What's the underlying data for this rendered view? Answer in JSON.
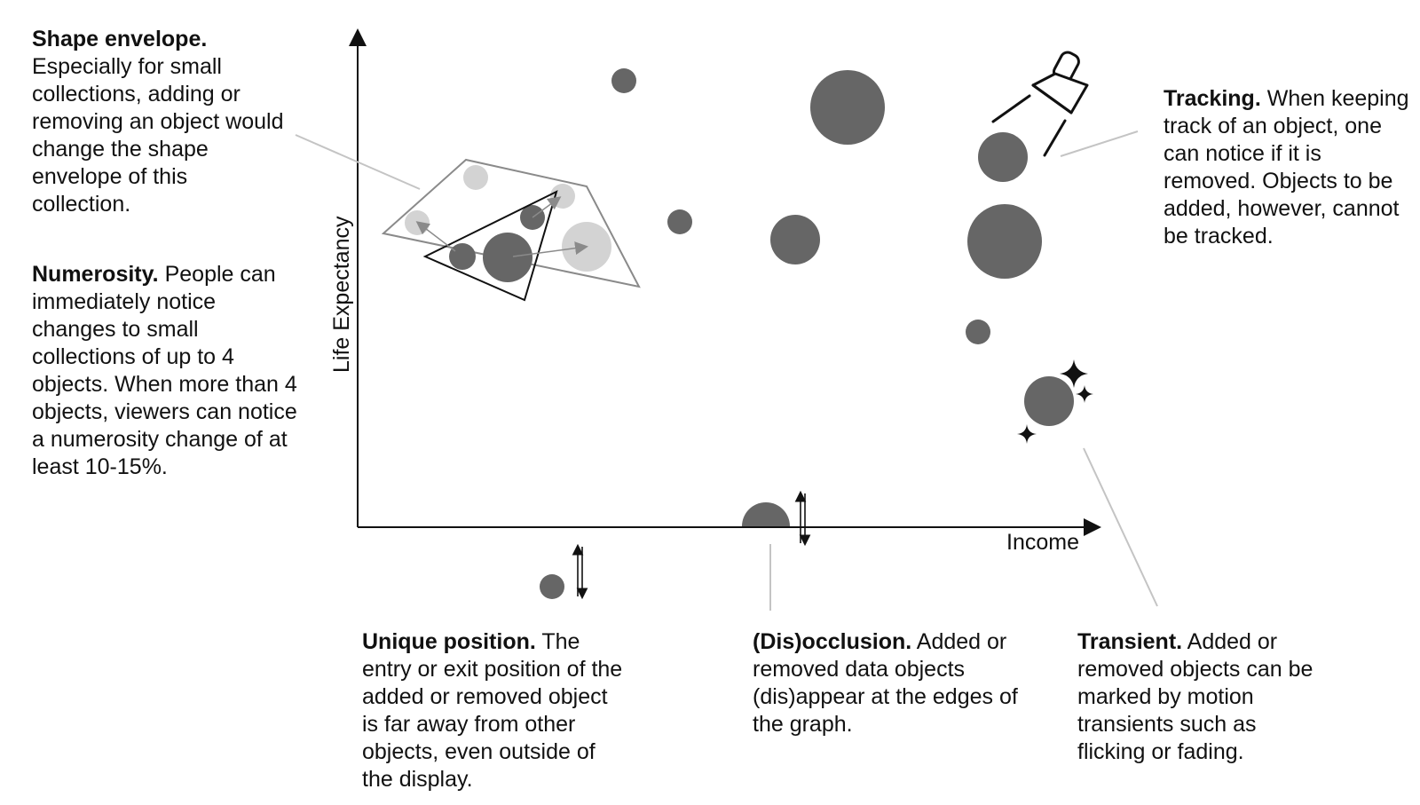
{
  "axes": {
    "x_label": "Income",
    "y_label": "Life Expectancy"
  },
  "annotations": {
    "shape_envelope": {
      "title": "Shape envelope.",
      "body": "Especially for small collections, adding or removing an object would change the shape envelope of this collection."
    },
    "numerosity": {
      "title": "Numerosity.",
      "body": "People can immediately notice changes to small collections of up to 4 objects. When more than 4 objects, viewers can notice a numerosity change of at least 10-15%."
    },
    "tracking": {
      "title": "Tracking.",
      "body": "When keeping track of an object, one can notice if it is removed. Objects to be added, however, cannot be tracked."
    },
    "unique_position": {
      "title": "Unique position.",
      "body": "The entry or exit position of the added or removed object is far away from other objects, even outside of the display."
    },
    "disocclusion": {
      "title": "(Dis)occlusion.",
      "body": "Added or removed data objects (dis)appear at the edges of the graph."
    },
    "transient": {
      "title": "Transient.",
      "body": "Added or removed objects can be marked by motion transients such as flicking or fading."
    }
  },
  "colors": {
    "bubble": "#666666",
    "faded": "#d3d3d3",
    "outline": "#888888",
    "leader": "#c4c4c4",
    "ink": "#111111"
  },
  "icons": {
    "tracking": "flashlight-icon",
    "transient": "sparkle-icon",
    "motion": "double-arrow-icon"
  }
}
